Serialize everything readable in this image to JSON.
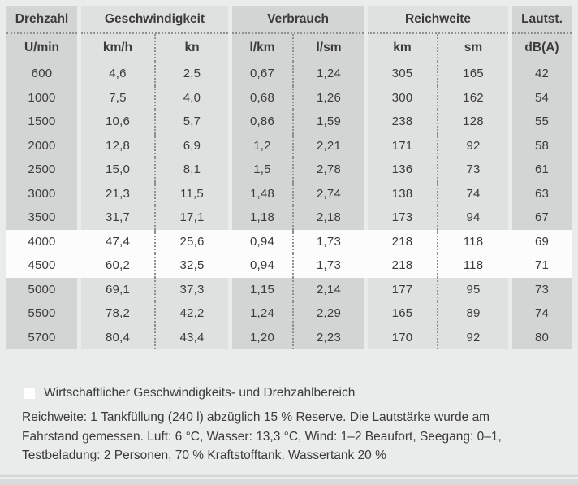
{
  "page": {
    "background": "#eaebeb",
    "cell_dark": "#d3d4d4",
    "cell_light": "#dfe0e0",
    "highlight_row_color": "#fcfcfd",
    "text_color": "#3b3b3d",
    "dotted_line_color": "#8f9090"
  },
  "table": {
    "groups": [
      {
        "label": "Drehzahl",
        "span": 1,
        "shade": "dark"
      },
      {
        "label": "Geschwindigkeit",
        "span": 2,
        "shade": "light"
      },
      {
        "label": "Verbrauch",
        "span": 2,
        "shade": "dark"
      },
      {
        "label": "Reichweite",
        "span": 2,
        "shade": "light"
      },
      {
        "label": "Lautst.",
        "span": 1,
        "shade": "dark"
      }
    ],
    "units": [
      "U/min",
      "km/h",
      "kn",
      "l/km",
      "l/sm",
      "km",
      "sm",
      "dB(A)"
    ],
    "rows": [
      [
        "600",
        "4,6",
        "2,5",
        "0,67",
        "1,24",
        "305",
        "165",
        "42"
      ],
      [
        "1000",
        "7,5",
        "4,0",
        "0,68",
        "1,26",
        "300",
        "162",
        "54"
      ],
      [
        "1500",
        "10,6",
        "5,7",
        "0,86",
        "1,59",
        "238",
        "128",
        "55"
      ],
      [
        "2000",
        "12,8",
        "6,9",
        "1,2",
        "2,21",
        "171",
        "92",
        "58"
      ],
      [
        "2500",
        "15,0",
        "8,1",
        "1,5",
        "2,78",
        "136",
        "73",
        "61"
      ],
      [
        "3000",
        "21,3",
        "11,5",
        "1,48",
        "2,74",
        "138",
        "74",
        "63"
      ],
      [
        "3500",
        "31,7",
        "17,1",
        "1,18",
        "2,18",
        "173",
        "94",
        "67"
      ],
      [
        "4000",
        "47,4",
        "25,6",
        "0,94",
        "1,73",
        "218",
        "118",
        "69"
      ],
      [
        "4500",
        "60,2",
        "32,5",
        "0,94",
        "1,73",
        "218",
        "118",
        "71"
      ],
      [
        "5000",
        "69,1",
        "37,3",
        "1,15",
        "2,14",
        "177",
        "95",
        "73"
      ],
      [
        "5500",
        "78,2",
        "42,2",
        "1,24",
        "2,29",
        "165",
        "89",
        "74"
      ],
      [
        "5700",
        "80,4",
        "43,4",
        "1,20",
        "2,23",
        "170",
        "92",
        "80"
      ]
    ],
    "highlight_row_indexes": [
      7,
      8
    ]
  },
  "legend": {
    "swatch_color": "#ffffff",
    "label": "Wirtschaftlicher Geschwindigkeits- und Drehzahlbereich"
  },
  "note": {
    "text": "Reichweite: 1 Tankfüllung (240 l) abzüglich 15 % Reserve. Die Lautstärke wurde am Fahrstand gemessen. Luft: 6 °C, Wasser: 13,3 °C, Wind: 1–2 Beaufort, Seegang: 0–1, Testbeladung: 2 Personen, 70 % Kraftstofftank, Wassertank 20 %"
  }
}
